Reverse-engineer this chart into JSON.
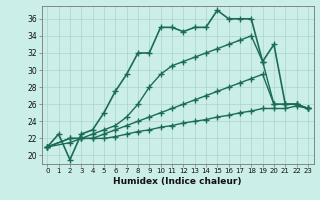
{
  "xlabel": "Humidex (Indice chaleur)",
  "background_color": "#cceee8",
  "grid_color": "#aad4ce",
  "line_color": "#1a6b5a",
  "xlim": [
    -0.5,
    23.5
  ],
  "ylim": [
    19,
    37.5
  ],
  "yticks": [
    20,
    22,
    24,
    26,
    28,
    30,
    32,
    34,
    36
  ],
  "xticks": [
    0,
    1,
    2,
    3,
    4,
    5,
    6,
    7,
    8,
    9,
    10,
    11,
    12,
    13,
    14,
    15,
    16,
    17,
    18,
    19,
    20,
    21,
    22,
    23
  ],
  "series": [
    {
      "x": [
        0,
        1,
        2,
        3,
        4,
        5,
        6,
        7,
        8,
        9,
        10,
        11,
        12,
        13,
        14,
        15,
        16,
        17,
        18,
        19,
        20,
        21,
        22,
        23
      ],
      "y": [
        21.0,
        22.5,
        19.5,
        22.5,
        23.0,
        25.0,
        27.5,
        29.5,
        32.0,
        32.0,
        35.0,
        35.0,
        34.5,
        35.0,
        35.0,
        37.0,
        36.0,
        36.0,
        36.0,
        31.0,
        33.0,
        26.0,
        26.0,
        25.5
      ],
      "marker": "+",
      "markersize": 4,
      "linewidth": 1.2
    },
    {
      "x": [
        0,
        2,
        3,
        4,
        5,
        6,
        7,
        8,
        9,
        10,
        11,
        12,
        13,
        14,
        15,
        16,
        17,
        18,
        19,
        20,
        21,
        22,
        23
      ],
      "y": [
        21.0,
        22.0,
        22.0,
        22.5,
        23.0,
        23.5,
        24.5,
        26.0,
        28.0,
        29.5,
        30.5,
        31.0,
        31.5,
        32.0,
        32.5,
        33.0,
        33.5,
        34.0,
        31.0,
        26.0,
        26.0,
        26.0,
        25.5
      ],
      "marker": "+",
      "markersize": 4,
      "linewidth": 1.0
    },
    {
      "x": [
        0,
        2,
        3,
        4,
        5,
        6,
        7,
        8,
        9,
        10,
        11,
        12,
        13,
        14,
        15,
        16,
        17,
        18,
        19,
        20,
        21,
        22,
        23
      ],
      "y": [
        21.0,
        22.0,
        22.0,
        22.0,
        22.5,
        23.0,
        23.5,
        24.0,
        24.5,
        25.0,
        25.5,
        26.0,
        26.5,
        27.0,
        27.5,
        28.0,
        28.5,
        29.0,
        29.5,
        26.0,
        26.0,
        26.0,
        25.5
      ],
      "marker": "+",
      "markersize": 4,
      "linewidth": 1.0
    },
    {
      "x": [
        0,
        2,
        3,
        4,
        5,
        6,
        7,
        8,
        9,
        10,
        11,
        12,
        13,
        14,
        15,
        16,
        17,
        18,
        19,
        20,
        21,
        22,
        23
      ],
      "y": [
        21.0,
        21.5,
        22.0,
        22.0,
        22.0,
        22.2,
        22.5,
        22.8,
        23.0,
        23.3,
        23.5,
        23.8,
        24.0,
        24.2,
        24.5,
        24.7,
        25.0,
        25.2,
        25.5,
        25.5,
        25.5,
        25.8,
        25.5
      ],
      "marker": "+",
      "markersize": 4,
      "linewidth": 1.0
    }
  ]
}
